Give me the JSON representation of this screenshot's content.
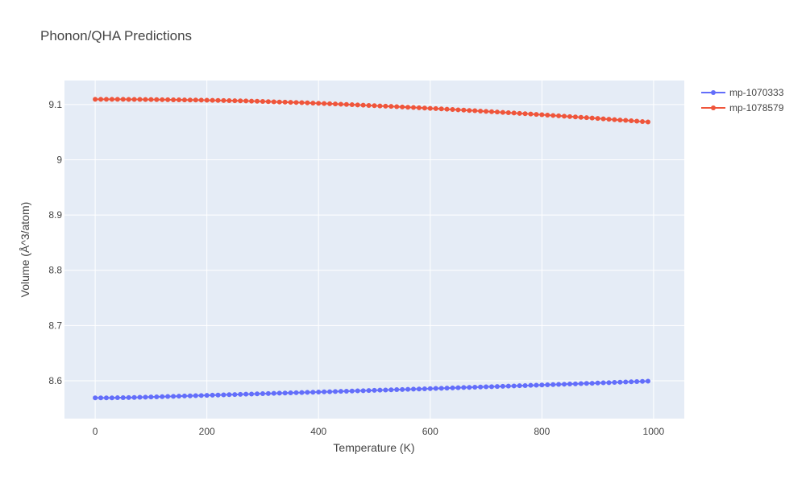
{
  "chart_data": {
    "type": "line",
    "title": "Phonon/QHA Predictions",
    "xlabel": "Temperature (K)",
    "ylabel": "Volume (Å^3/atom)",
    "xlim": [
      -55,
      1055
    ],
    "ylim": [
      8.5315,
      9.1435
    ],
    "x_ticks": [
      0,
      200,
      400,
      600,
      800,
      1000
    ],
    "x_tick_labels": [
      "0",
      "200",
      "400",
      "600",
      "800",
      "1000"
    ],
    "y_ticks": [
      8.6,
      8.7,
      8.8,
      8.9,
      9.0,
      9.1
    ],
    "y_tick_labels": [
      "8.6",
      "8.7",
      "8.8",
      "8.9",
      "9",
      "9.1"
    ],
    "grid": true,
    "legend_position": "top-right",
    "x": [
      0,
      10,
      20,
      30,
      40,
      50,
      60,
      70,
      80,
      90,
      100,
      110,
      120,
      130,
      140,
      150,
      160,
      170,
      180,
      190,
      200,
      210,
      220,
      230,
      240,
      250,
      260,
      270,
      280,
      290,
      300,
      310,
      320,
      330,
      340,
      350,
      360,
      370,
      380,
      390,
      400,
      410,
      420,
      430,
      440,
      450,
      460,
      470,
      480,
      490,
      500,
      510,
      520,
      530,
      540,
      550,
      560,
      570,
      580,
      590,
      600,
      610,
      620,
      630,
      640,
      650,
      660,
      670,
      680,
      690,
      700,
      710,
      720,
      730,
      740,
      750,
      760,
      770,
      780,
      790,
      800,
      810,
      820,
      830,
      840,
      850,
      860,
      870,
      880,
      890,
      900,
      910,
      920,
      930,
      940,
      950,
      960,
      970,
      980,
      990
    ],
    "series": [
      {
        "name": "mp-1070333",
        "color": "#636efa",
        "values": [
          8.569,
          8.569,
          8.5691,
          8.5691,
          8.5693,
          8.5694,
          8.5696,
          8.5698,
          8.5701,
          8.5703,
          8.5706,
          8.5709,
          8.5712,
          8.5715,
          8.5718,
          8.5721,
          8.5724,
          8.5727,
          8.573,
          8.5733,
          8.5736,
          8.5739,
          8.5742,
          8.5745,
          8.5748,
          8.5751,
          8.5754,
          8.5757,
          8.576,
          8.5763,
          8.5766,
          8.5769,
          8.5772,
          8.5775,
          8.5778,
          8.5781,
          8.5784,
          8.5787,
          8.579,
          8.5793,
          8.5796,
          8.5799,
          8.5802,
          8.5805,
          8.5808,
          8.5811,
          8.5814,
          8.5817,
          8.582,
          8.5823,
          8.5826,
          8.583,
          8.5833,
          8.5836,
          8.5839,
          8.5842,
          8.5845,
          8.5848,
          8.5851,
          8.5854,
          8.5858,
          8.5861,
          8.5864,
          8.5867,
          8.587,
          8.5874,
          8.5877,
          8.588,
          8.5883,
          8.5887,
          8.589,
          8.5893,
          8.5896,
          8.59,
          8.5903,
          8.5906,
          8.591,
          8.5913,
          8.5917,
          8.592,
          8.5923,
          8.5927,
          8.593,
          8.5934,
          8.5937,
          8.5941,
          8.5944,
          8.5948,
          8.5952,
          8.5955,
          8.5959,
          8.5963,
          8.5966,
          8.597,
          8.5974,
          8.5978,
          8.5981,
          8.5985,
          8.5989,
          8.5993
        ]
      },
      {
        "name": "mp-1078579",
        "color": "#ef553b",
        "values": [
          9.1095,
          9.1095,
          9.1095,
          9.1095,
          9.1094,
          9.1094,
          9.1093,
          9.1093,
          9.1092,
          9.1091,
          9.109,
          9.1089,
          9.1088,
          9.1087,
          9.1086,
          9.1085,
          9.1084,
          9.1082,
          9.1081,
          9.108,
          9.1078,
          9.1077,
          9.1075,
          9.1073,
          9.1071,
          9.1069,
          9.1067,
          9.1065,
          9.1062,
          9.1059,
          9.1056,
          9.1052,
          9.1049,
          9.1046,
          9.1043,
          9.104,
          9.1037,
          9.1034,
          9.103,
          9.1026,
          9.1022,
          9.1018,
          9.1014,
          9.101,
          9.1006,
          9.1002,
          9.0997,
          9.0993,
          9.0989,
          9.0984,
          9.098,
          9.0975,
          9.097,
          9.0966,
          9.0961,
          9.0956,
          9.0951,
          9.0946,
          9.0941,
          9.0936,
          9.0931,
          9.0926,
          9.0921,
          9.0915,
          9.091,
          9.0904,
          9.0899,
          9.0893,
          9.0888,
          9.0882,
          9.0876,
          9.087,
          9.0864,
          9.0858,
          9.0852,
          9.0846,
          9.084,
          9.0834,
          9.0828,
          9.0821,
          9.0815,
          9.0808,
          9.0802,
          9.0795,
          9.0789,
          9.0782,
          9.0775,
          9.0769,
          9.0762,
          9.0755,
          9.0748,
          9.0741,
          9.0734,
          9.0727,
          9.072,
          9.0713,
          9.0706,
          9.0699,
          9.0691,
          9.0684
        ]
      }
    ]
  }
}
